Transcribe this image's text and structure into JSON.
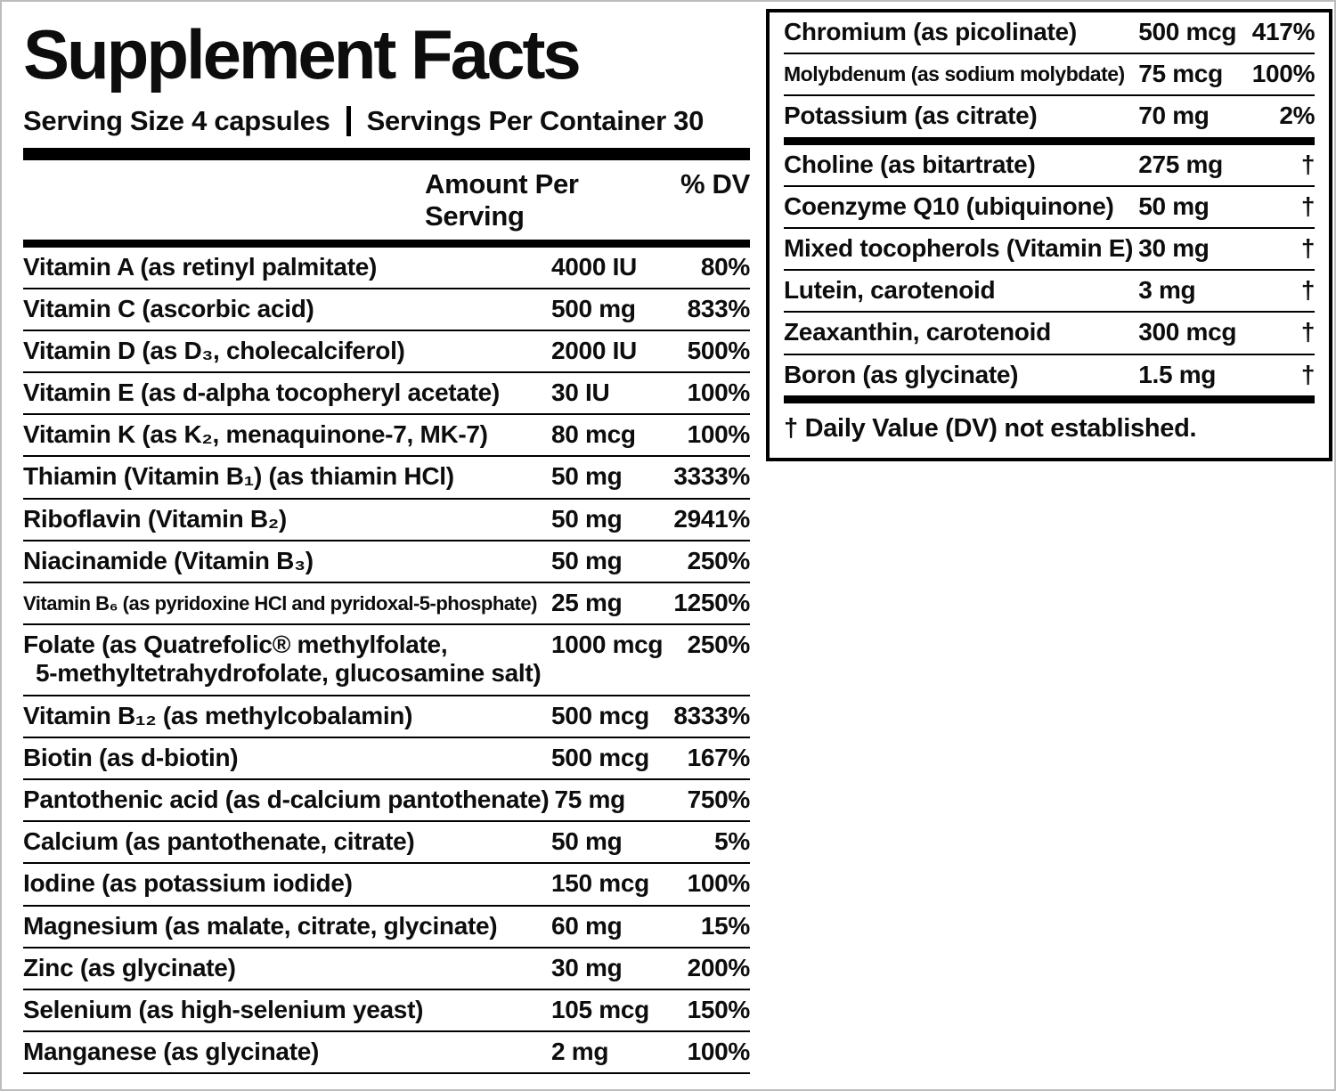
{
  "page": {
    "title": "Supplement Facts",
    "serving_size": "Serving Size 4 capsules",
    "servings_per_container": "Servings Per Container 30",
    "col_amount": "Amount Per Serving",
    "col_dv": "% DV",
    "footnote": "† Daily Value (DV) not established."
  },
  "left_rows": [
    {
      "name": "Vitamin A (as retinyl palmitate)",
      "amount": "4000 IU",
      "dv": "80%"
    },
    {
      "name": "Vitamin C (ascorbic acid)",
      "amount": "500 mg",
      "dv": "833%"
    },
    {
      "name": "Vitamin D (as D₃, cholecalciferol)",
      "amount": "2000 IU",
      "dv": "500%"
    },
    {
      "name": "Vitamin E (as d-alpha tocopheryl acetate)",
      "amount": "30 IU",
      "dv": "100%"
    },
    {
      "name": "Vitamin K (as K₂, menaquinone-7, MK-7)",
      "amount": "80 mcg",
      "dv": "100%"
    },
    {
      "name": "Thiamin (Vitamin B₁) (as thiamin HCl)",
      "amount": "50 mg",
      "dv": "3333%"
    },
    {
      "name": "Riboflavin (Vitamin B₂)",
      "amount": "50 mg",
      "dv": "2941%"
    },
    {
      "name": "Niacinamide (Vitamin B₃)",
      "amount": "50 mg",
      "dv": "250%"
    },
    {
      "name": "Vitamin B₆ (as pyridoxine HCl and pyridoxal-5-phosphate)",
      "amount": "25 mg",
      "dv": "1250%"
    },
    {
      "name": "Folate (as Quatrefolic® methylfolate,",
      "name2": "5-methyltetrahydrofolate, glucosamine salt)",
      "amount": "1000 mcg",
      "dv": "250%"
    },
    {
      "name": "Vitamin B₁₂ (as methylcobalamin)",
      "amount": "500 mcg",
      "dv": "8333%"
    },
    {
      "name": "Biotin (as d-biotin)",
      "amount": "500 mcg",
      "dv": "167%"
    },
    {
      "name": "Pantothenic acid (as d-calcium pantothenate)",
      "amount": "75 mg",
      "dv": "750%"
    },
    {
      "name": "Calcium (as pantothenate, citrate)",
      "amount": "50 mg",
      "dv": "5%"
    },
    {
      "name": "Iodine (as potassium iodide)",
      "amount": "150 mcg",
      "dv": "100%"
    },
    {
      "name": "Magnesium (as malate, citrate, glycinate)",
      "amount": "60 mg",
      "dv": "15%"
    },
    {
      "name": "Zinc (as glycinate)",
      "amount": "30 mg",
      "dv": "200%"
    },
    {
      "name": "Selenium (as high-selenium yeast)",
      "amount": "105 mcg",
      "dv": "150%"
    },
    {
      "name": "Manganese (as glycinate)",
      "amount": "2 mg",
      "dv": "100%"
    }
  ],
  "right_top_rows": [
    {
      "name": "Chromium (as picolinate)",
      "amount": "500 mcg",
      "dv": "417%"
    },
    {
      "name": "Molybdenum (as sodium molybdate)",
      "amount": "75 mcg",
      "dv": "100%"
    },
    {
      "name": "Potassium (as citrate)",
      "amount": "70 mg",
      "dv": "2%"
    }
  ],
  "right_bottom_rows": [
    {
      "name": "Choline (as bitartrate)",
      "amount": "275 mg",
      "dv": "†"
    },
    {
      "name": "Coenzyme Q10 (ubiquinone)",
      "amount": "50 mg",
      "dv": "†"
    },
    {
      "name": "Mixed tocopherols (Vitamin E)",
      "amount": "30 mg",
      "dv": "†"
    },
    {
      "name": "Lutein, carotenoid",
      "amount": "3 mg",
      "dv": "†"
    },
    {
      "name": "Zeaxanthin, carotenoid",
      "amount": "300 mcg",
      "dv": "†"
    },
    {
      "name": "Boron (as glycinate)",
      "amount": "1.5 mg",
      "dv": "†"
    }
  ]
}
